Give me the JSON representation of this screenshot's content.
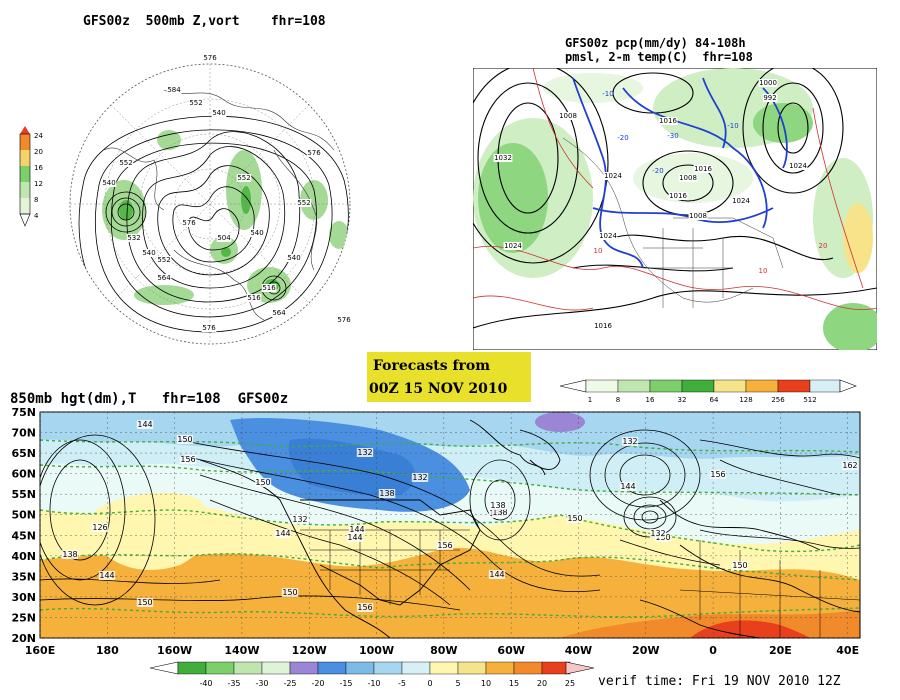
{
  "polar_panel": {
    "title": "GFS00z  500mb Z,vort    fhr=108",
    "colorbar_ticks": [
      "24",
      "20",
      "16",
      "12",
      "8",
      "4"
    ],
    "contour_labels": [
      "576",
      "584",
      "552",
      "540",
      "552",
      "540",
      "532",
      "540",
      "552",
      "564",
      "576",
      "516",
      "540",
      "504",
      "516",
      "540",
      "552",
      "576",
      "576",
      "576",
      "552",
      "564"
    ]
  },
  "na_panel": {
    "title_line1": "GFS00z pcp(mm/dy) 84-108h",
    "title_line2": "pmsl, 2-m temp(C)  fhr=108",
    "contour_labels": [
      "1032",
      "1024",
      "1016",
      "1008",
      "1024",
      "1016",
      "1024",
      "1008",
      "1000",
      "992",
      "1024",
      "1016",
      "1008",
      "1016",
      "1024"
    ],
    "temp_labels": [
      "-10",
      "-20",
      "-30",
      "-10",
      "-20",
      "10",
      "10",
      "20"
    ],
    "colorbar_ticks": [
      "1",
      "8",
      "16",
      "32",
      "64",
      "128",
      "256",
      "512"
    ]
  },
  "forecast_box": {
    "line1": "Forecasts from",
    "line2": "00Z 15 NOV 2010",
    "bg": "#e8e02a"
  },
  "bottom_panel": {
    "title": "850mb hgt(dm),T   fhr=108  GFS00z",
    "lat_labels": [
      "75N",
      "70N",
      "65N",
      "60N",
      "55N",
      "50N",
      "45N",
      "40N",
      "35N",
      "30N",
      "25N",
      "20N"
    ],
    "lon_labels": [
      "160E",
      "180",
      "160W",
      "140W",
      "120W",
      "100W",
      "80W",
      "60W",
      "40W",
      "20W",
      "0",
      "20E",
      "40E"
    ],
    "contour_labels": [
      "144",
      "150",
      "132",
      "156",
      "126",
      "138",
      "144",
      "150",
      "132",
      "144",
      "138",
      "138",
      "150",
      "132",
      "144",
      "150",
      "132",
      "156",
      "144",
      "150",
      "138",
      "132",
      "144",
      "156",
      "150",
      "162",
      "144",
      "138",
      "150",
      "156"
    ],
    "colorbar_ticks": [
      "-40",
      "-35",
      "-30",
      "-25",
      "-20",
      "-15",
      "-10",
      "-5",
      "0",
      "5",
      "10",
      "15",
      "20",
      "25"
    ],
    "verif_time": "verif time: Fri 19 NOV 2010 12Z"
  },
  "colors": {
    "cold_blue": "#3a7fd6",
    "light_blue": "#a6d6f0",
    "pale_cyan": "#d7f0f5",
    "pale_yellow": "#fff6b0",
    "orange": "#f5b13b",
    "deep_orange": "#f08a2a",
    "red": "#e8401c",
    "green": "#5fbf4f",
    "purple": "#9b86d6"
  }
}
